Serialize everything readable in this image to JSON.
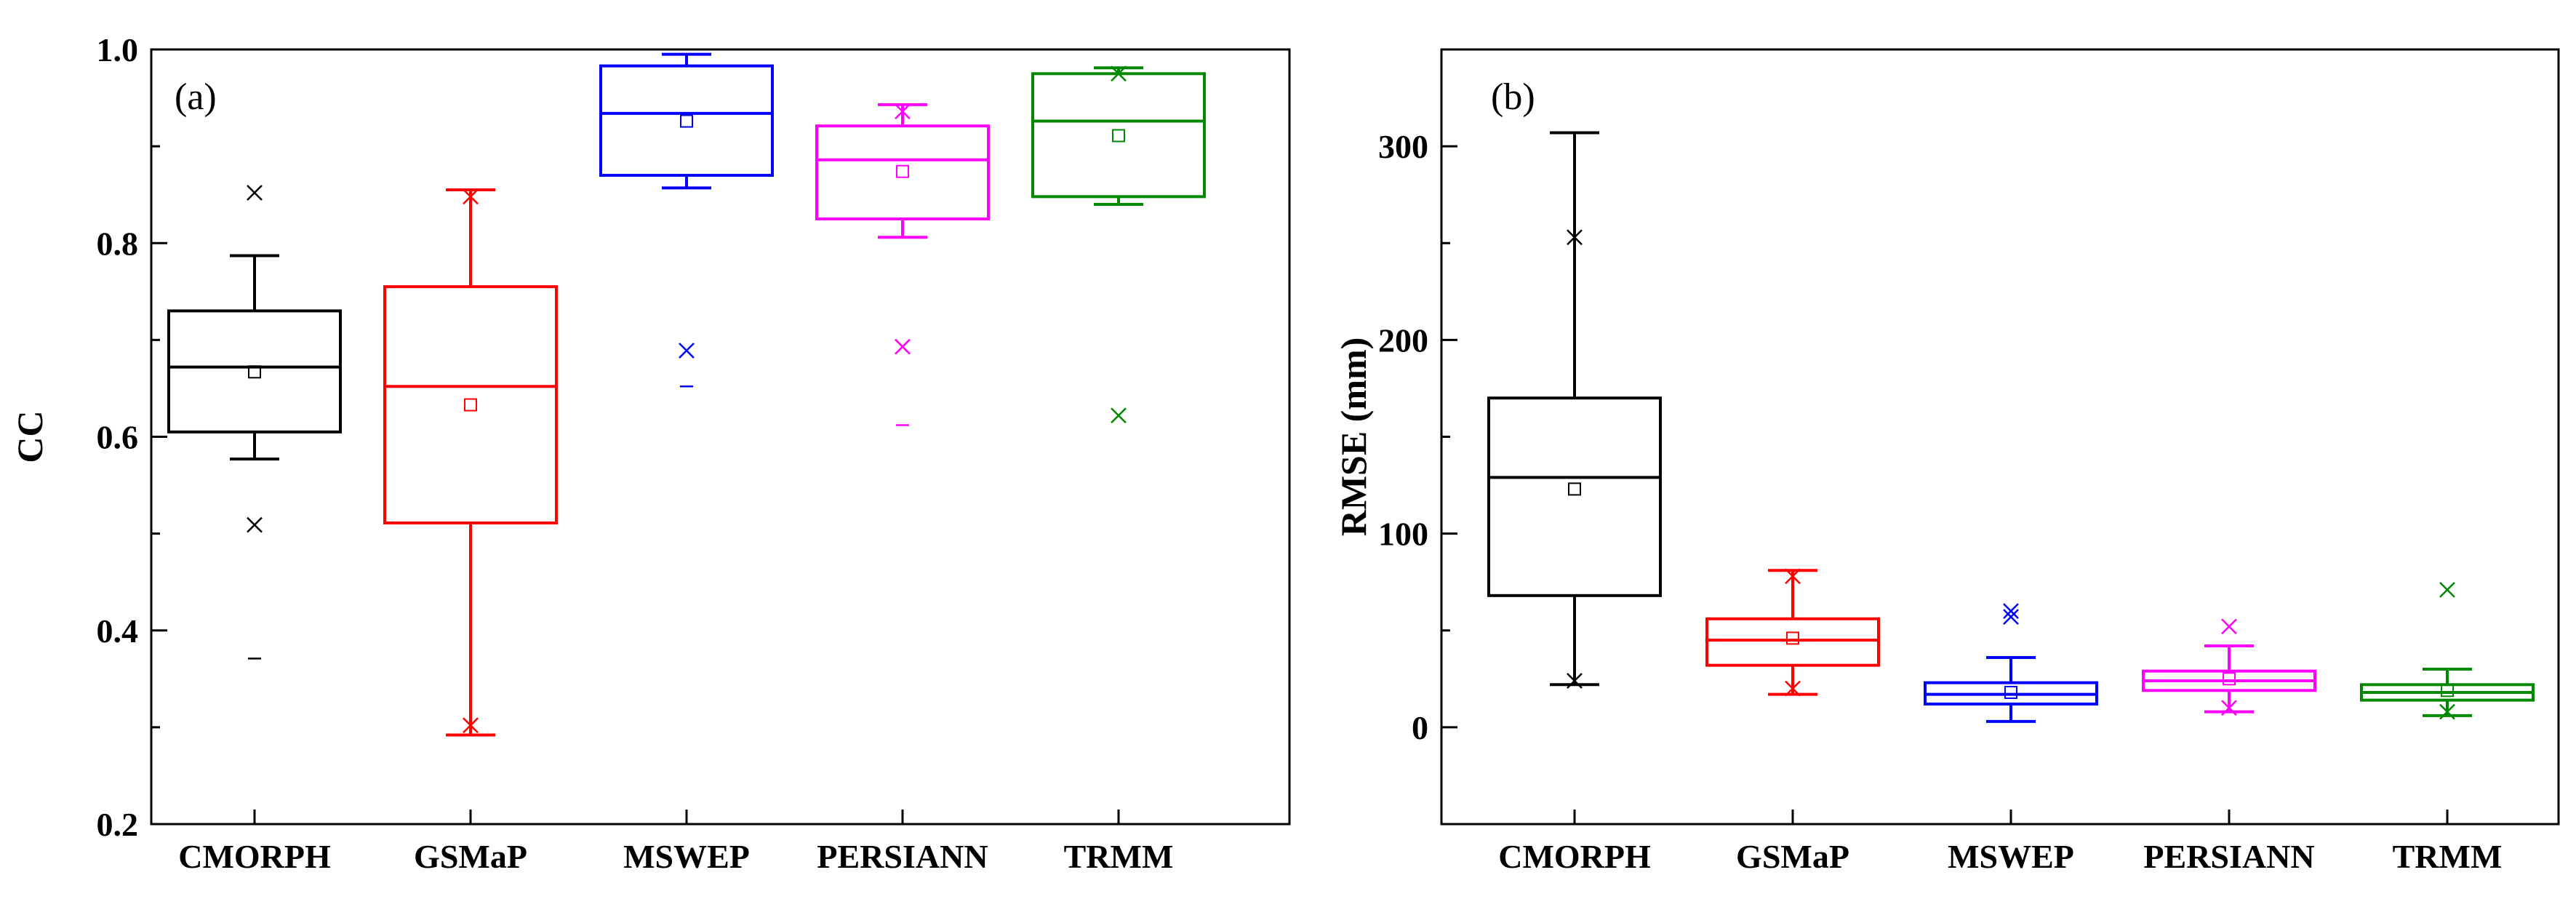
{
  "chart_data": [
    {
      "type": "box",
      "panel_label": "(a)",
      "title": "",
      "xlabel": "",
      "ylabel": "CC",
      "ylim": [
        0.2,
        1.0
      ],
      "yticks": [
        0.2,
        0.4,
        0.6,
        0.8,
        1.0
      ],
      "ytick_labels": [
        "0.2",
        "0.4",
        "0.6",
        "0.8",
        "1.0"
      ],
      "categories": [
        "CMORPH",
        "GSMaP",
        "MSWEP",
        "PERSIANN",
        "TRMM"
      ],
      "series": [
        {
          "name": "CMORPH",
          "color": "#000000",
          "whisker_low": 0.577,
          "q1": 0.605,
          "median": 0.672,
          "q3": 0.73,
          "whisker_high": 0.787,
          "mean": 0.667,
          "x_marks": [
            0.852,
            0.509
          ],
          "min_max_dashes": [
            0.371
          ]
        },
        {
          "name": "GSMaP",
          "color": "#ff0000",
          "whisker_low": 0.292,
          "q1": 0.511,
          "median": 0.652,
          "q3": 0.755,
          "whisker_high": 0.855,
          "mean": 0.633,
          "x_marks": [
            0.848,
            0.302
          ],
          "min_max_dashes": []
        },
        {
          "name": "MSWEP",
          "color": "#0000ff",
          "whisker_low": 0.857,
          "q1": 0.87,
          "median": 0.934,
          "q3": 0.983,
          "whisker_high": 0.995,
          "mean": 0.926,
          "x_marks": [
            0.689
          ],
          "min_max_dashes": [
            0.652
          ]
        },
        {
          "name": "PERSIANN",
          "color": "#ff00ff",
          "whisker_low": 0.806,
          "q1": 0.825,
          "median": 0.886,
          "q3": 0.921,
          "whisker_high": 0.943,
          "mean": 0.874,
          "x_marks": [
            0.936,
            0.693
          ],
          "min_max_dashes": [
            0.612
          ]
        },
        {
          "name": "TRMM",
          "color": "#008800",
          "whisker_low": 0.84,
          "q1": 0.848,
          "median": 0.926,
          "q3": 0.975,
          "whisker_high": 0.981,
          "mean": 0.911,
          "x_marks": [
            0.975,
            0.622
          ],
          "min_max_dashes": []
        }
      ]
    },
    {
      "type": "box",
      "panel_label": "(b)",
      "title": "",
      "xlabel": "",
      "ylabel": "RMSE (mm)",
      "ylim": [
        -50,
        350
      ],
      "yticks": [
        0,
        100,
        200,
        300
      ],
      "ytick_labels": [
        "0",
        "100",
        "200",
        "300"
      ],
      "categories": [
        "CMORPH",
        "GSMaP",
        "MSWEP",
        "PERSIANN",
        "TRMM"
      ],
      "series": [
        {
          "name": "CMORPH",
          "color": "#000000",
          "whisker_low": 22,
          "q1": 68,
          "median": 129,
          "q3": 170,
          "whisker_high": 307,
          "mean": 123,
          "x_marks": [
            253,
            24
          ],
          "min_max_dashes": []
        },
        {
          "name": "GSMaP",
          "color": "#ff0000",
          "whisker_low": 17,
          "q1": 32,
          "median": 45,
          "q3": 56,
          "whisker_high": 81,
          "mean": 46,
          "x_marks": [
            78,
            20
          ],
          "min_max_dashes": []
        },
        {
          "name": "MSWEP",
          "color": "#0000ff",
          "whisker_low": 3,
          "q1": 12,
          "median": 17,
          "q3": 23,
          "whisker_high": 36,
          "mean": 18,
          "x_marks": [
            60,
            57
          ],
          "min_max_dashes": []
        },
        {
          "name": "PERSIANN",
          "color": "#ff00ff",
          "whisker_low": 8,
          "q1": 19,
          "median": 24,
          "q3": 29,
          "whisker_high": 42,
          "mean": 25,
          "x_marks": [
            52,
            10
          ],
          "min_max_dashes": []
        },
        {
          "name": "TRMM",
          "color": "#008800",
          "whisker_low": 6,
          "q1": 14,
          "median": 18,
          "q3": 22,
          "whisker_high": 30,
          "mean": 19,
          "x_marks": [
            71,
            8
          ],
          "min_max_dashes": []
        }
      ]
    }
  ]
}
